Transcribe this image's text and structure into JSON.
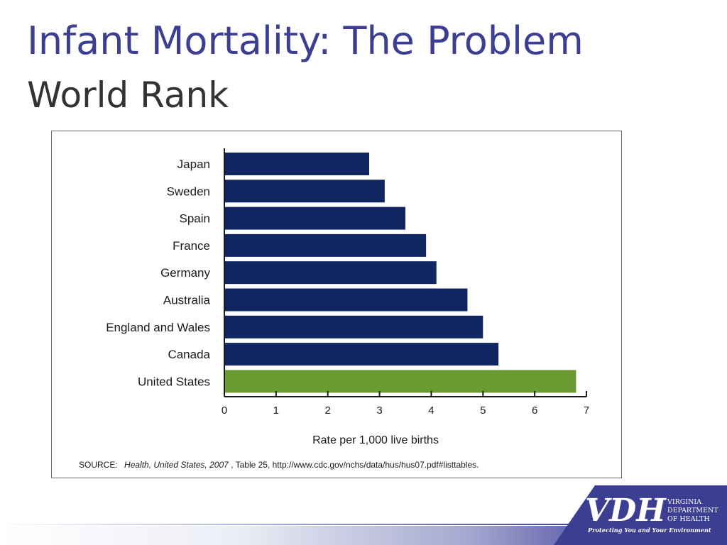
{
  "slide": {
    "title": "Infant Mortality: The Problem",
    "subtitle": "World Rank"
  },
  "chart_data": {
    "type": "bar",
    "orientation": "horizontal",
    "categories": [
      "Japan",
      "Sweden",
      "Spain",
      "France",
      "Germany",
      "Australia",
      "England and Wales",
      "Canada",
      "United States"
    ],
    "values": [
      2.8,
      3.1,
      3.5,
      3.9,
      4.1,
      4.7,
      5.0,
      5.3,
      6.8
    ],
    "bar_colors": [
      "#0f2660",
      "#0f2660",
      "#0f2660",
      "#0f2660",
      "#0f2660",
      "#0f2660",
      "#0f2660",
      "#0f2660",
      "#6b9a32"
    ],
    "xlabel": "Rate per 1,000 live births",
    "xlim": [
      0,
      7
    ],
    "xticks": [
      "0",
      "1",
      "2",
      "3",
      "4",
      "5",
      "6",
      "7"
    ],
    "source_label": "SOURCE:",
    "source_publication": "Health, United States, 2007",
    "source_detail": ", Table 25, http://www.cdc.gov/nchs/data/hus/hus07.pdf#listtables.",
    "grid": false,
    "legend": "none"
  },
  "logo": {
    "mark": "VDH",
    "line1": "VIRGINIA",
    "line2": "DEPARTMENT",
    "line3": "OF HEALTH",
    "tagline": "Protecting You and Your Environment",
    "color": "#3b3e91"
  }
}
